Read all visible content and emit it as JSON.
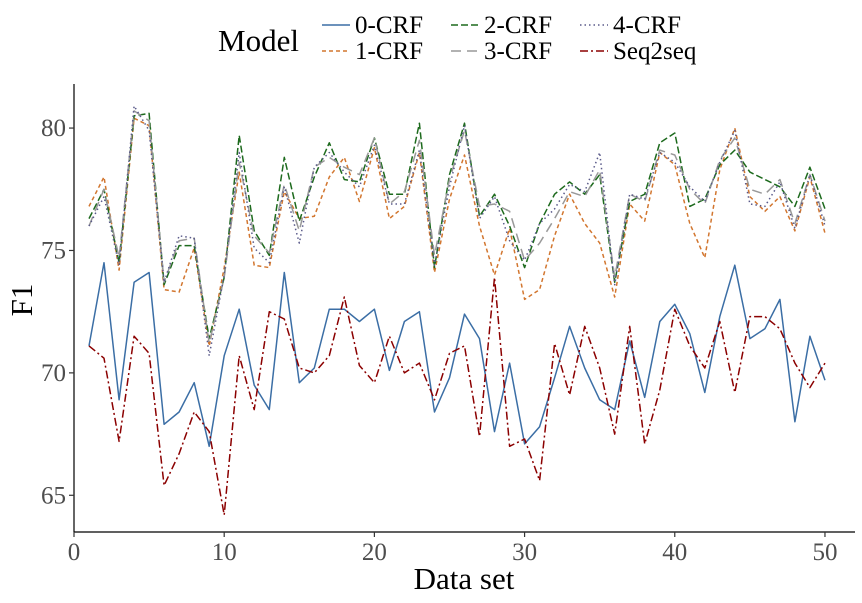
{
  "chart_data": {
    "type": "line",
    "xlabel": "Data set",
    "ylabel": "F1",
    "xlim": [
      0,
      52
    ],
    "ylim": [
      63.5,
      81.8
    ],
    "xticks": [
      0,
      10,
      20,
      30,
      40,
      50
    ],
    "yticks": [
      65,
      70,
      75,
      80
    ],
    "grid": false,
    "legend": {
      "title": "Model",
      "position": "top"
    },
    "x": [
      1,
      2,
      3,
      4,
      5,
      6,
      7,
      8,
      9,
      10,
      11,
      12,
      13,
      14,
      15,
      16,
      17,
      18,
      19,
      20,
      21,
      22,
      23,
      24,
      25,
      26,
      27,
      28,
      29,
      30,
      31,
      32,
      33,
      34,
      35,
      36,
      37,
      38,
      39,
      40,
      41,
      42,
      43,
      44,
      45,
      46,
      47,
      48,
      49,
      50
    ],
    "series": [
      {
        "name": "0-CRF",
        "color": "#3b6ea5",
        "dash": "solid",
        "values": [
          71.1,
          74.5,
          68.9,
          73.7,
          74.1,
          67.9,
          68.4,
          69.6,
          67.0,
          70.7,
          72.6,
          69.5,
          68.5,
          74.1,
          69.6,
          70.2,
          72.6,
          72.6,
          72.1,
          72.6,
          70.1,
          72.1,
          72.5,
          68.4,
          69.8,
          72.4,
          71.4,
          67.6,
          70.4,
          67.1,
          67.8,
          69.8,
          71.9,
          70.2,
          68.9,
          68.5,
          71.3,
          69.0,
          72.1,
          72.8,
          71.6,
          69.2,
          72.3,
          74.4,
          71.4,
          71.8,
          73.0,
          68.0,
          71.5,
          69.7
        ]
      },
      {
        "name": "1-CRF",
        "color": "#d2762f",
        "dash": "4,3",
        "values": [
          76.8,
          78.0,
          74.2,
          80.4,
          80.1,
          73.4,
          73.3,
          75.1,
          71.1,
          74.3,
          78.2,
          74.4,
          74.3,
          77.4,
          76.3,
          76.4,
          78.0,
          78.8,
          77.0,
          79.2,
          76.3,
          76.8,
          79.0,
          74.1,
          77.1,
          78.9,
          76.0,
          74.0,
          75.9,
          73.0,
          73.4,
          75.6,
          77.3,
          76.1,
          75.3,
          73.1,
          76.9,
          76.2,
          79.0,
          78.5,
          76.1,
          74.7,
          78.3,
          80.0,
          77.2,
          76.6,
          77.2,
          75.8,
          78.0,
          75.7
        ]
      },
      {
        "name": "2-CRF",
        "color": "#1d6a1d",
        "dash": "7,3",
        "values": [
          76.3,
          77.5,
          74.5,
          80.5,
          80.6,
          73.6,
          75.2,
          75.2,
          71.4,
          73.9,
          79.7,
          75.8,
          74.8,
          78.8,
          76.2,
          78.0,
          79.4,
          77.9,
          77.8,
          79.6,
          77.3,
          77.3,
          80.2,
          74.3,
          78.1,
          80.2,
          76.4,
          77.3,
          76.0,
          74.3,
          76.1,
          77.3,
          77.8,
          77.3,
          78.1,
          73.7,
          77.0,
          77.3,
          79.4,
          79.8,
          76.8,
          77.1,
          78.5,
          79.1,
          78.2,
          77.9,
          77.6,
          76.8,
          78.4,
          76.7
        ]
      },
      {
        "name": "3-CRF",
        "color": "#999999",
        "dash": "10,6",
        "values": [
          76.0,
          77.5,
          74.7,
          80.7,
          80.3,
          73.7,
          75.4,
          75.5,
          71.2,
          73.9,
          78.6,
          75.6,
          74.9,
          77.7,
          75.8,
          78.4,
          78.8,
          78.4,
          78.1,
          79.6,
          76.9,
          77.4,
          79.5,
          74.8,
          77.9,
          79.9,
          76.8,
          76.9,
          76.6,
          74.6,
          75.3,
          76.3,
          77.4,
          77.2,
          78.3,
          73.9,
          77.3,
          77.0,
          79.1,
          78.9,
          77.5,
          76.9,
          78.7,
          79.6,
          77.5,
          77.3,
          77.9,
          76.1,
          78.1,
          76.2
        ]
      },
      {
        "name": "4-CRF",
        "color": "#5a5a8a",
        "dash": "1.5,3",
        "values": [
          76.0,
          77.2,
          74.4,
          80.9,
          79.9,
          73.7,
          75.6,
          75.5,
          70.7,
          74.0,
          79.0,
          75.1,
          74.5,
          77.6,
          75.3,
          78.4,
          79.0,
          78.2,
          77.6,
          79.3,
          76.9,
          76.9,
          79.1,
          74.4,
          77.6,
          80.1,
          76.3,
          77.2,
          75.4,
          74.6,
          76.1,
          76.7,
          77.7,
          77.4,
          79.0,
          73.6,
          77.3,
          77.1,
          79.0,
          78.6,
          77.6,
          77.0,
          78.6,
          79.9,
          76.9,
          76.8,
          77.8,
          75.9,
          78.1,
          76.0
        ]
      },
      {
        "name": "Seq2seq",
        "color": "#8b0000",
        "dash": "8,3,2,3",
        "values": [
          71.1,
          70.6,
          67.2,
          71.5,
          70.8,
          65.4,
          66.7,
          68.4,
          67.6,
          64.2,
          70.7,
          68.5,
          72.5,
          72.2,
          70.2,
          70.0,
          70.7,
          73.1,
          70.3,
          69.6,
          71.5,
          70.0,
          70.4,
          68.9,
          70.8,
          71.1,
          67.4,
          73.9,
          67.0,
          67.3,
          65.6,
          71.2,
          69.1,
          71.9,
          70.2,
          67.5,
          71.9,
          67.1,
          69.3,
          72.6,
          71.1,
          70.2,
          72.1,
          69.2,
          72.3,
          72.3,
          71.8,
          70.4,
          69.4,
          70.4
        ]
      }
    ]
  }
}
